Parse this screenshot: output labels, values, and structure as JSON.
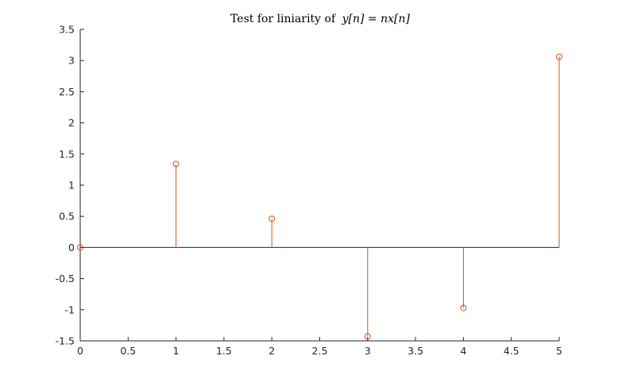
{
  "chart_data": {
    "type": "stem",
    "title": "Test for liniarity of",
    "title_math": "y[n] = nx[n]",
    "xlabel": "",
    "ylabel": "",
    "x": [
      0,
      1,
      2,
      3,
      4,
      5
    ],
    "y": [
      0,
      1.34,
      0.46,
      -1.43,
      -0.97,
      3.06
    ],
    "xlim": [
      0,
      5
    ],
    "ylim": [
      -1.5,
      3.5
    ],
    "xticks": [
      "0",
      "0.5",
      "1",
      "1.5",
      "2",
      "2.5",
      "3",
      "3.5",
      "4",
      "4.5",
      "5"
    ],
    "yticks": [
      "-1.5",
      "-1",
      "-0.5",
      "0",
      "0.5",
      "1",
      "1.5",
      "2",
      "2.5",
      "3",
      "3.5"
    ],
    "grid": false,
    "box": false,
    "marker": "open-circle",
    "color": "#d95319",
    "baseline": 0
  }
}
